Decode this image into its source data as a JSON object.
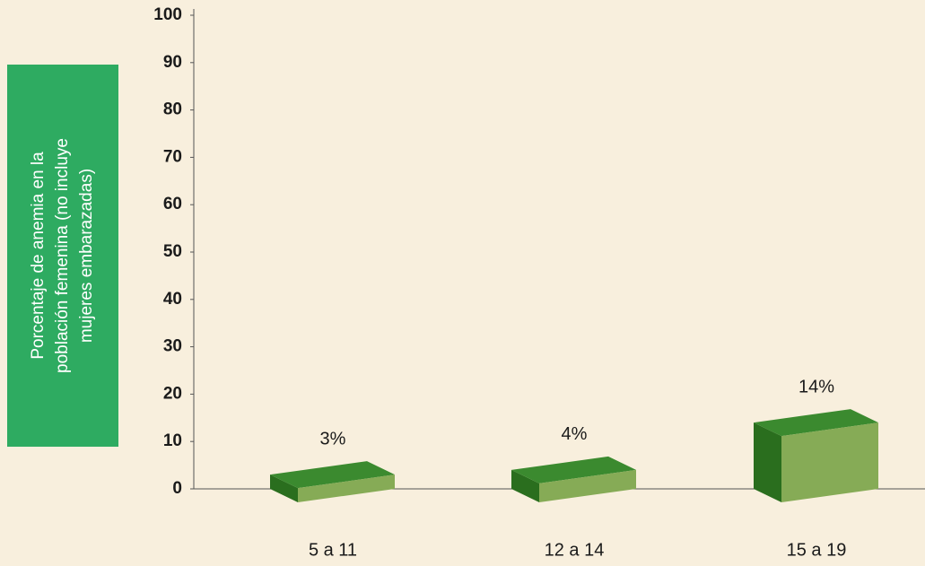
{
  "chart_data": {
    "type": "bar3d",
    "y_label": [
      "Porcentaje de anemia en la",
      "población femenina (no incluye",
      "mujeres embarazadas)"
    ],
    "categories": [
      "5 a 11",
      "12 a 14",
      "15 a 19"
    ],
    "values": [
      3,
      4,
      14
    ],
    "value_labels": [
      "3%",
      "4%",
      "14%"
    ],
    "ylim": [
      0,
      100
    ],
    "yticks": [
      0,
      10,
      20,
      30,
      40,
      50,
      60,
      70,
      80,
      90,
      100
    ],
    "colors": {
      "front": "#86ab56",
      "side": "#2a6e1e",
      "top": "#3b8a2f"
    }
  }
}
